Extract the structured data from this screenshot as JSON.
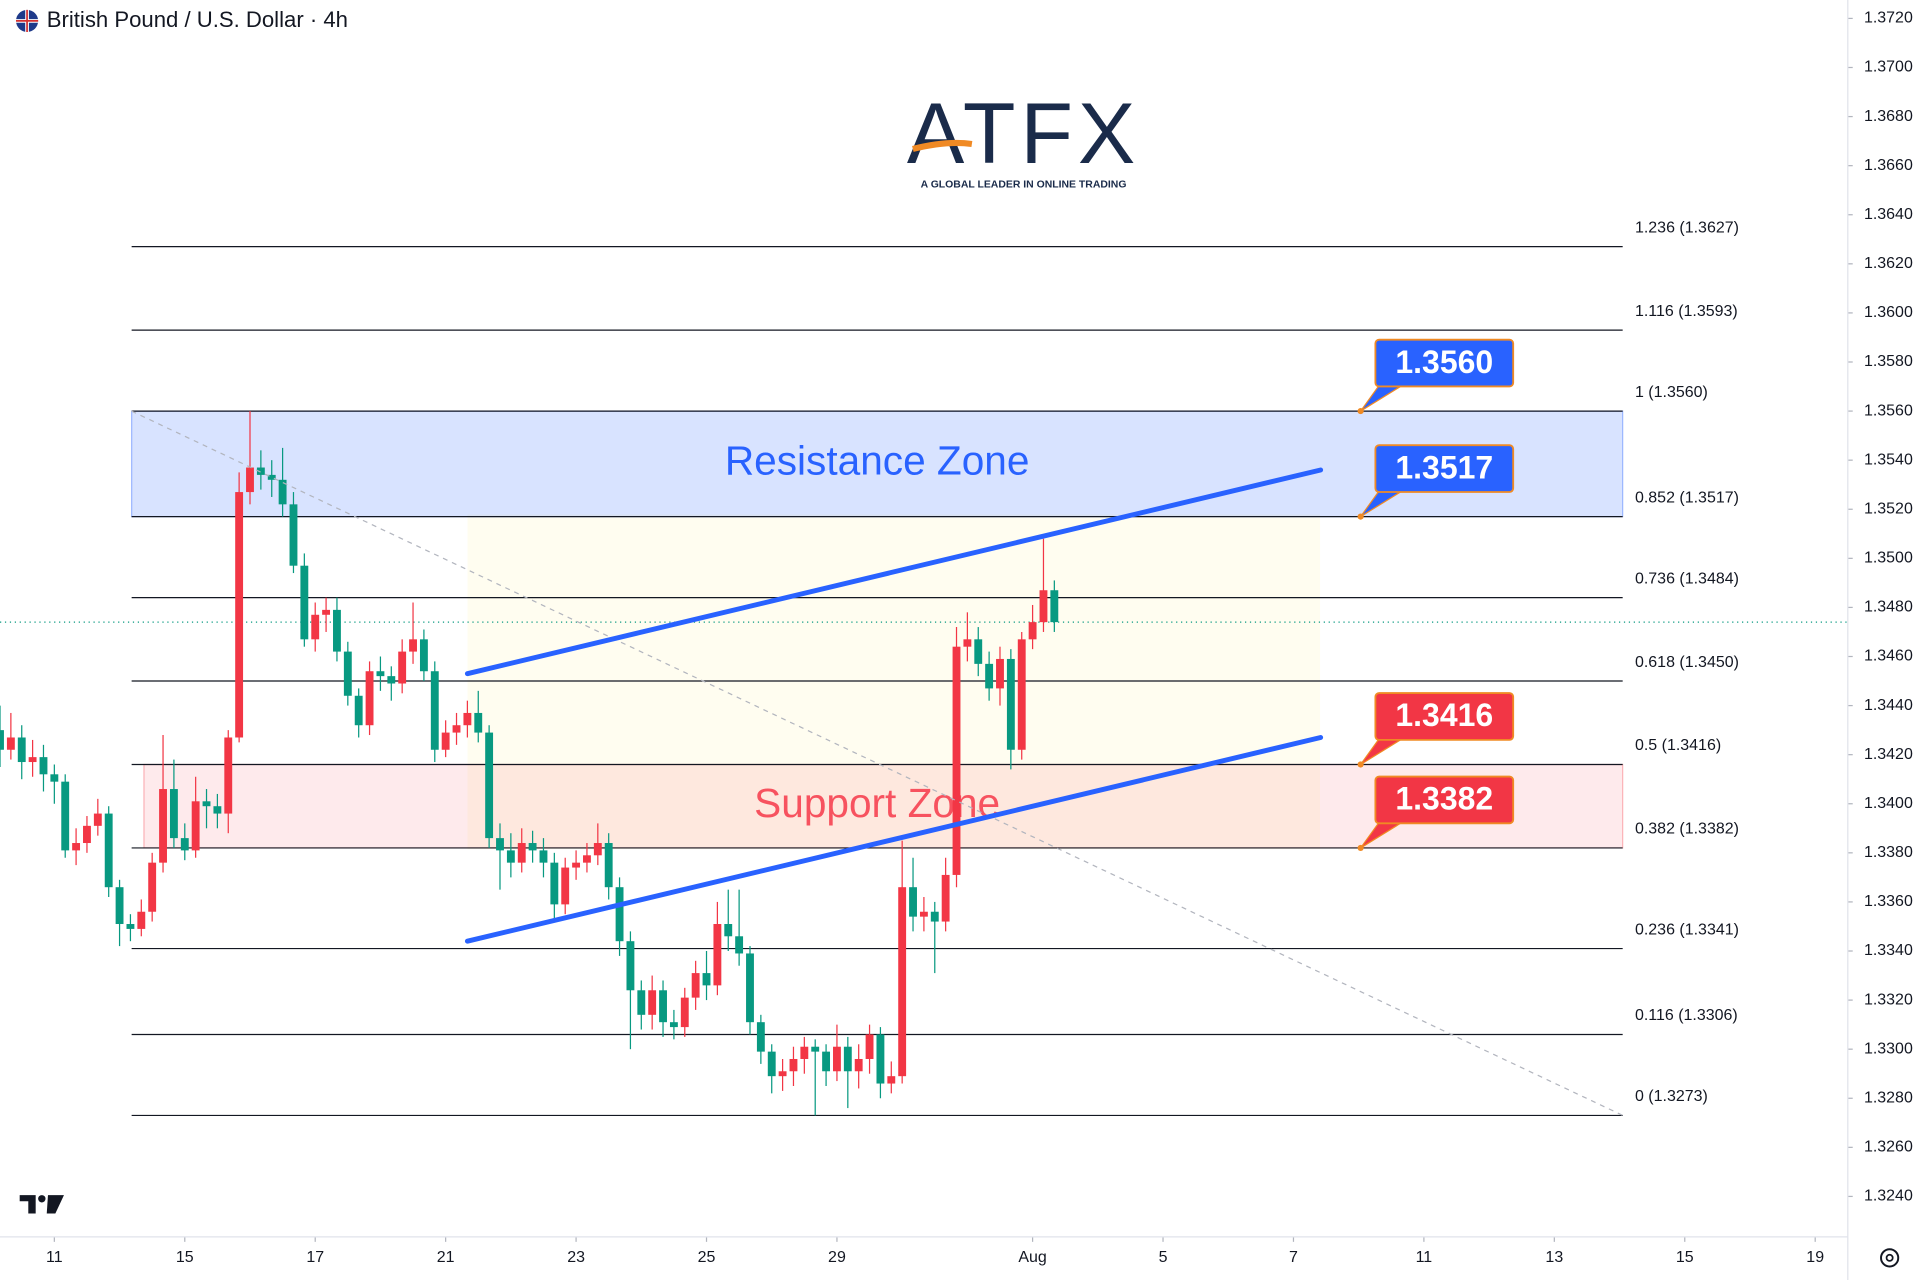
{
  "chart_data": {
    "type": "candlestick",
    "title": "British Pound / U.S. Dollar · 4h",
    "up_color": "#f23645",
    "down_color": "#089981",
    "xlim": [
      -5,
      165
    ],
    "ylim": [
      1.32235,
      1.37275
    ],
    "xticks": [
      {
        "value": 0,
        "label": "11"
      },
      {
        "value": 12,
        "label": "15"
      },
      {
        "value": 24,
        "label": "17"
      },
      {
        "value": 36,
        "label": "21"
      },
      {
        "value": 48,
        "label": "23"
      },
      {
        "value": 60,
        "label": "25"
      },
      {
        "value": 72,
        "label": "29"
      },
      {
        "value": 90,
        "label": "Aug"
      },
      {
        "value": 102,
        "label": "5"
      },
      {
        "value": 114,
        "label": "7"
      },
      {
        "value": 126,
        "label": "11"
      },
      {
        "value": 138,
        "label": "13"
      },
      {
        "value": 150,
        "label": "15"
      },
      {
        "value": 162,
        "label": "19"
      }
    ],
    "yticks": [
      {
        "value": 1.324,
        "label": "1.3240"
      },
      {
        "value": 1.326,
        "label": "1.3260"
      },
      {
        "value": 1.328,
        "label": "1.3280"
      },
      {
        "value": 1.33,
        "label": "1.3300"
      },
      {
        "value": 1.332,
        "label": "1.3320"
      },
      {
        "value": 1.334,
        "label": "1.3340"
      },
      {
        "value": 1.336,
        "label": "1.3360"
      },
      {
        "value": 1.338,
        "label": "1.3380"
      },
      {
        "value": 1.34,
        "label": "1.3400"
      },
      {
        "value": 1.342,
        "label": "1.3420"
      },
      {
        "value": 1.344,
        "label": "1.3440"
      },
      {
        "value": 1.346,
        "label": "1.3460"
      },
      {
        "value": 1.348,
        "label": "1.3480"
      },
      {
        "value": 1.35,
        "label": "1.3500"
      },
      {
        "value": 1.352,
        "label": "1.3520"
      },
      {
        "value": 1.354,
        "label": "1.3540"
      },
      {
        "value": 1.356,
        "label": "1.3560"
      },
      {
        "value": 1.358,
        "label": "1.3580"
      },
      {
        "value": 1.36,
        "label": "1.3600"
      },
      {
        "value": 1.362,
        "label": "1.3620"
      },
      {
        "value": 1.364,
        "label": "1.3640"
      },
      {
        "value": 1.366,
        "label": "1.3660"
      },
      {
        "value": 1.368,
        "label": "1.3680"
      },
      {
        "value": 1.37,
        "label": "1.3700"
      },
      {
        "value": 1.372,
        "label": "1.3720"
      }
    ],
    "x": [
      -5,
      -4,
      -3,
      -2,
      -1,
      0,
      1,
      2,
      3,
      4,
      5,
      6,
      7,
      8,
      9,
      10,
      11,
      12,
      13,
      14,
      15,
      16,
      17,
      18,
      19,
      20,
      21,
      22,
      23,
      24,
      25,
      26,
      27,
      28,
      29,
      30,
      31,
      32,
      33,
      34,
      35,
      36,
      37,
      38,
      39,
      40,
      41,
      42,
      43,
      44,
      45,
      46,
      47,
      48,
      49,
      50,
      51,
      52,
      53,
      54,
      55,
      56,
      57,
      58,
      59,
      60,
      61,
      62,
      63,
      64,
      65,
      66,
      67,
      68,
      69,
      70,
      71,
      72,
      73,
      74,
      75,
      76,
      77,
      78,
      79,
      80,
      81,
      82,
      83,
      84,
      85,
      86,
      87,
      88,
      89,
      90,
      91,
      92
    ],
    "open": [
      1.343,
      1.3422,
      1.3427,
      1.3417,
      1.3419,
      1.3412,
      1.3409,
      1.3381,
      1.3384,
      1.3391,
      1.3396,
      1.3366,
      1.3351,
      1.3349,
      1.3356,
      1.3376,
      1.3406,
      1.3386,
      1.3381,
      1.3401,
      1.3399,
      1.3396,
      1.3427,
      1.3527,
      1.3537,
      1.3534,
      1.3532,
      1.3522,
      1.3497,
      1.3467,
      1.3477,
      1.3479,
      1.3462,
      1.3444,
      1.3432,
      1.3454,
      1.3452,
      1.3449,
      1.3462,
      1.3467,
      1.3454,
      1.3422,
      1.3429,
      1.3432,
      1.3437,
      1.3429,
      1.3386,
      1.3381,
      1.3376,
      1.3384,
      1.3381,
      1.3376,
      1.3359,
      1.3374,
      1.3376,
      1.3379,
      1.3384,
      1.3366,
      1.3344,
      1.3324,
      1.3314,
      1.3324,
      1.3311,
      1.3309,
      1.3321,
      1.3331,
      1.3326,
      1.3351,
      1.3346,
      1.3339,
      1.3311,
      1.3299,
      1.3289,
      1.3291,
      1.3296,
      1.3301,
      1.3299,
      1.3291,
      1.3301,
      1.3291,
      1.3296,
      1.3306,
      1.3286,
      1.3289,
      1.3366,
      1.3354,
      1.3356,
      1.3352,
      1.3371,
      1.3464,
      1.3467,
      1.3457,
      1.3447,
      1.3459,
      1.3422,
      1.3467,
      1.3474,
      1.3487
    ],
    "high": [
      1.344,
      1.3437,
      1.3432,
      1.3426,
      1.3424,
      1.3416,
      1.3412,
      1.339,
      1.3395,
      1.3402,
      1.3399,
      1.3369,
      1.3355,
      1.3361,
      1.338,
      1.3428,
      1.3418,
      1.3392,
      1.3411,
      1.3406,
      1.3404,
      1.343,
      1.3535,
      1.356,
      1.3544,
      1.354,
      1.3545,
      1.3527,
      1.3502,
      1.3482,
      1.3484,
      1.3484,
      1.3466,
      1.3447,
      1.3458,
      1.346,
      1.3456,
      1.3467,
      1.3482,
      1.3471,
      1.3458,
      1.3434,
      1.3437,
      1.3442,
      1.3446,
      1.3432,
      1.3392,
      1.3388,
      1.339,
      1.3389,
      1.3386,
      1.338,
      1.3378,
      1.3381,
      1.3384,
      1.3392,
      1.3388,
      1.337,
      1.3348,
      1.3328,
      1.333,
      1.3328,
      1.3316,
      1.3325,
      1.3336,
      1.334,
      1.336,
      1.3365,
      1.3365,
      1.3342,
      1.3314,
      1.3302,
      1.3296,
      1.3301,
      1.3305,
      1.3304,
      1.3302,
      1.331,
      1.3305,
      1.3302,
      1.331,
      1.3309,
      1.3295,
      1.3385,
      1.3378,
      1.3362,
      1.336,
      1.3378,
      1.3472,
      1.3478,
      1.3472,
      1.3462,
      1.3464,
      1.3463,
      1.347,
      1.3481,
      1.3508,
      1.3491
    ],
    "low": [
      1.3415,
      1.3418,
      1.341,
      1.3411,
      1.3405,
      1.34,
      1.3378,
      1.3375,
      1.338,
      1.3387,
      1.3362,
      1.3342,
      1.3344,
      1.3346,
      1.3352,
      1.3372,
      1.3382,
      1.3377,
      1.3378,
      1.339,
      1.339,
      1.3388,
      1.3425,
      1.3522,
      1.3528,
      1.3525,
      1.3517,
      1.3494,
      1.3464,
      1.3462,
      1.347,
      1.3458,
      1.344,
      1.3427,
      1.3428,
      1.3446,
      1.3442,
      1.3445,
      1.3457,
      1.345,
      1.3417,
      1.3419,
      1.3424,
      1.3427,
      1.3425,
      1.3382,
      1.3365,
      1.337,
      1.3372,
      1.3376,
      1.337,
      1.3352,
      1.3355,
      1.3369,
      1.3372,
      1.3375,
      1.3361,
      1.3338,
      1.33,
      1.3308,
      1.3308,
      1.3305,
      1.3304,
      1.3305,
      1.3316,
      1.332,
      1.3322,
      1.334,
      1.3334,
      1.3306,
      1.3294,
      1.3282,
      1.3283,
      1.3285,
      1.329,
      1.3273,
      1.3285,
      1.3287,
      1.3276,
      1.3284,
      1.329,
      1.328,
      1.3282,
      1.3286,
      1.3348,
      1.3348,
      1.3331,
      1.3348,
      1.3366,
      1.3458,
      1.3452,
      1.3442,
      1.344,
      1.3414,
      1.3418,
      1.3463,
      1.347,
      1.347
    ],
    "close": [
      1.3422,
      1.3427,
      1.3417,
      1.3419,
      1.3412,
      1.3409,
      1.3381,
      1.3384,
      1.3391,
      1.3396,
      1.3366,
      1.3351,
      1.3349,
      1.3356,
      1.3376,
      1.3406,
      1.3386,
      1.3381,
      1.3401,
      1.3399,
      1.3396,
      1.3427,
      1.3527,
      1.3537,
      1.3534,
      1.3532,
      1.3522,
      1.3497,
      1.3467,
      1.3477,
      1.3479,
      1.3462,
      1.3444,
      1.3432,
      1.3454,
      1.3452,
      1.3449,
      1.3462,
      1.3467,
      1.3454,
      1.3422,
      1.3429,
      1.3432,
      1.3437,
      1.3429,
      1.3386,
      1.3381,
      1.3376,
      1.3384,
      1.3381,
      1.3376,
      1.3359,
      1.3374,
      1.3376,
      1.3379,
      1.3384,
      1.3366,
      1.3344,
      1.3324,
      1.3314,
      1.3324,
      1.3311,
      1.3309,
      1.3321,
      1.3331,
      1.3326,
      1.3351,
      1.3346,
      1.3339,
      1.3311,
      1.3299,
      1.3289,
      1.3291,
      1.3296,
      1.3301,
      1.3299,
      1.3291,
      1.3301,
      1.3291,
      1.3296,
      1.3306,
      1.3286,
      1.3289,
      1.3366,
      1.3354,
      1.3356,
      1.3352,
      1.3371,
      1.3464,
      1.3467,
      1.3457,
      1.3447,
      1.3459,
      1.3422,
      1.3467,
      1.3474,
      1.3487,
      1.3474
    ],
    "fib_levels": [
      {
        "label": "1.236 (1.3627)",
        "value": 1.3627
      },
      {
        "label": "1.116 (1.3593)",
        "value": 1.3593
      },
      {
        "label": "1 (1.3560)",
        "value": 1.356
      },
      {
        "label": "0.852 (1.3517)",
        "value": 1.3517
      },
      {
        "label": "0.736 (1.3484)",
        "value": 1.3484
      },
      {
        "label": "0.618 (1.3450)",
        "value": 1.345
      },
      {
        "label": "0.5 (1.3416)",
        "value": 1.3416
      },
      {
        "label": "0.382 (1.3382)",
        "value": 1.3382
      },
      {
        "label": "0.236 (1.3341)",
        "value": 1.3341
      },
      {
        "label": "0.116 (1.3306)",
        "value": 1.3306
      },
      {
        "label": "0 (1.3273)",
        "value": 1.3273
      }
    ],
    "zones": [
      {
        "label": "Resistance Zone",
        "from": 1.3517,
        "to": 1.356,
        "color": "#2962ff"
      },
      {
        "label": "Support Zone",
        "from": 1.3382,
        "to": 1.3416,
        "color": "#f7525f"
      }
    ],
    "trend_lines": [
      {
        "x": [
          38,
          116.5
        ],
        "y": [
          1.3453,
          1.3536
        ],
        "color": "#2962ff"
      },
      {
        "x": [
          38,
          116.5
        ],
        "y": [
          1.3344,
          1.3427
        ],
        "color": "#2962ff"
      }
    ],
    "guide_line": {
      "x": [
        7.1,
        144.3
      ],
      "y": [
        1.356,
        1.3273
      ],
      "color": "#b2b5be"
    },
    "price_labels": [
      {
        "label": "1.3560",
        "value": 1.356,
        "color": "#2962ff"
      },
      {
        "label": "1.3517",
        "value": 1.3517,
        "color": "#2962ff"
      },
      {
        "label": "1.3416",
        "value": 1.3416,
        "color": "#f23645"
      },
      {
        "label": "1.3382",
        "value": 1.3382,
        "color": "#f23645"
      }
    ]
  },
  "logo": {
    "name": "ATFX",
    "tagline": "A GLOBAL LEADER IN ONLINE TRADING"
  }
}
